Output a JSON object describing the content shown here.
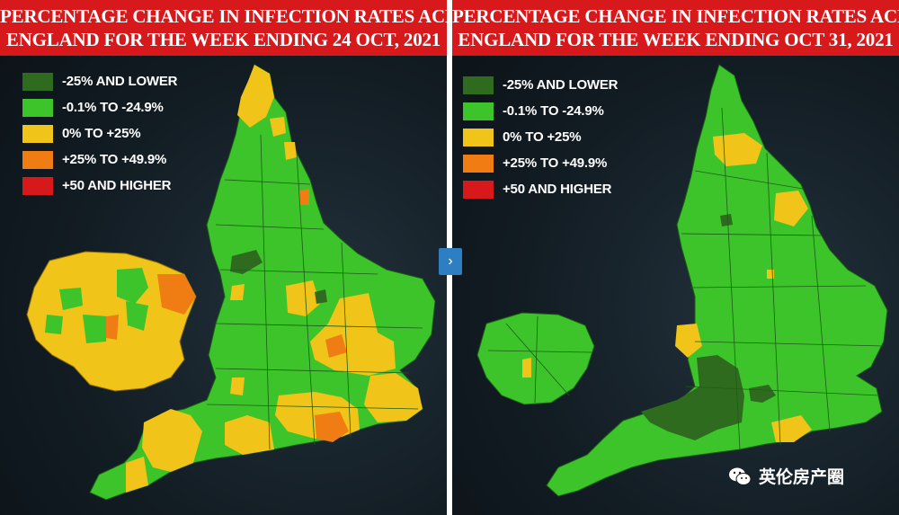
{
  "left_panel": {
    "title_line1": "PERCENTAGE CHANGE IN INFECTION RATES ACROSS",
    "title_line2": "ENGLAND FOR THE WEEK ENDING 24 OCT, 2021"
  },
  "right_panel": {
    "title_line1": "PERCENTAGE CHANGE IN INFECTION RATES ACROSS",
    "title_line2": "ENGLAND FOR THE WEEK ENDING OCT 31, 2021"
  },
  "legend": [
    {
      "label": "-25% AND LOWER",
      "color": "#2e6b1f"
    },
    {
      "label": "-0.1% TO -24.9%",
      "color": "#3cc42a"
    },
    {
      "label": "0% TO +25%",
      "color": "#f0c419"
    },
    {
      "label": "+25% TO +49.9%",
      "color": "#f07d14"
    },
    {
      "label": "+50 AND HIGHER",
      "color": "#d7191c"
    }
  ],
  "nav": {
    "arrow": "›"
  },
  "watermark": {
    "text": "英伦房产圈",
    "icon": "wechat-icon"
  }
}
